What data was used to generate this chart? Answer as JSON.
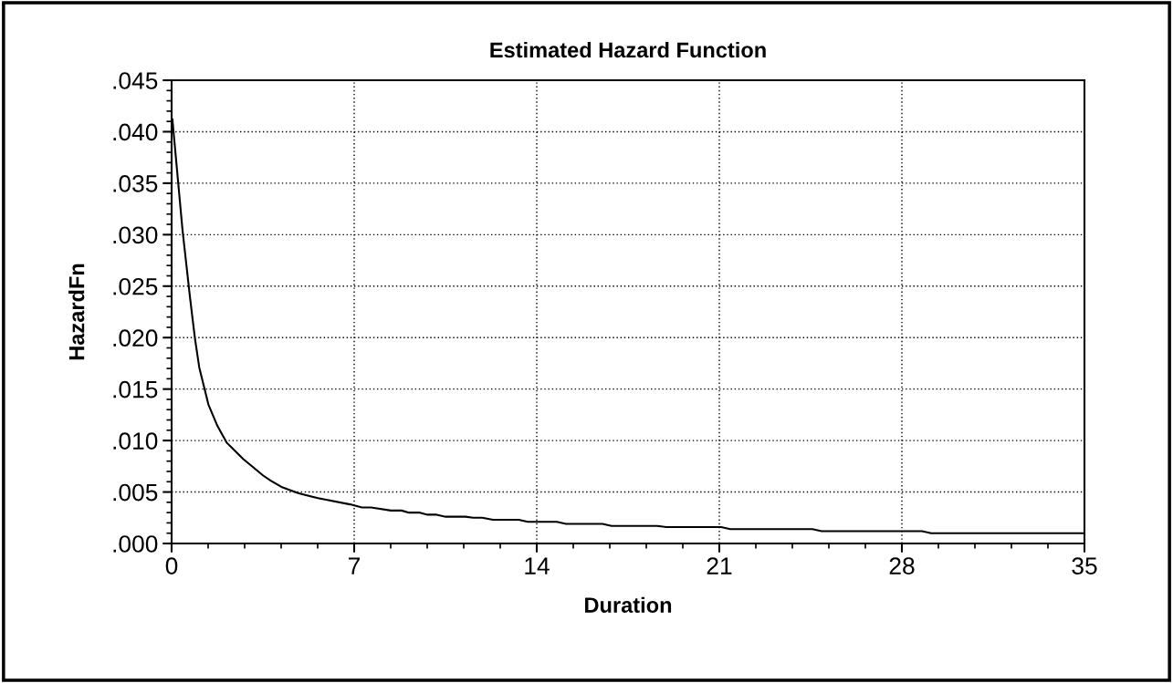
{
  "chart_data": {
    "type": "line",
    "title": "Estimated Hazard Function",
    "xlabel": "Duration",
    "ylabel": "HazardFn",
    "series": [
      {
        "color": "#000000",
        "x": [
          0.03,
          0.42,
          0.71,
          0.89,
          1.06,
          1.41,
          1.76,
          2.11,
          2.75,
          3.51,
          3.8,
          4.21,
          4.85,
          5.15,
          5.61,
          6.84,
          7.3,
          7.65,
          8.41,
          8.82,
          9.1,
          9.52,
          9.81,
          10.16,
          10.51,
          11.27,
          11.56,
          11.91,
          12.32,
          13.31,
          13.66,
          14.77,
          15.12,
          16.52,
          16.87,
          18.62,
          18.97,
          21.07,
          21.42,
          24.57,
          24.92,
          28.77,
          29.12,
          35
        ],
        "values": [
          0.0412,
          0.0304,
          0.0238,
          0.02,
          0.0171,
          0.0135,
          0.0114,
          0.0098,
          0.0082,
          0.0066,
          0.0061,
          0.0055,
          0.0049,
          0.0047,
          0.0044,
          0.0038,
          0.0035,
          0.0035,
          0.0032,
          0.0032,
          0.003,
          0.003,
          0.0028,
          0.0028,
          0.0026,
          0.0026,
          0.0025,
          0.0025,
          0.0023,
          0.0023,
          0.0021,
          0.0021,
          0.0019,
          0.0019,
          0.0017,
          0.0017,
          0.0016,
          0.0016,
          0.0014,
          0.0014,
          0.0012,
          0.0012,
          0.001,
          0.001
        ]
      }
    ],
    "xlim": [
      0,
      35
    ],
    "xticks": [
      0,
      7,
      14,
      21,
      28,
      35
    ],
    "ylim": [
      0,
      0.045
    ],
    "yticks": [
      {
        "value": 0,
        "label": ".000"
      },
      {
        "value": 0.005,
        "label": ".005"
      },
      {
        "value": 0.01,
        "label": ".010"
      },
      {
        "value": 0.015,
        "label": ".015"
      },
      {
        "value": 0.02,
        "label": ".020"
      },
      {
        "value": 0.025,
        "label": ".025"
      },
      {
        "value": 0.03,
        "label": ".030"
      },
      {
        "value": 0.035,
        "label": ".035"
      },
      {
        "value": 0.04,
        "label": ".040"
      },
      {
        "value": 0.045,
        "label": ".045"
      }
    ],
    "grid": true,
    "line_style": "solid"
  }
}
